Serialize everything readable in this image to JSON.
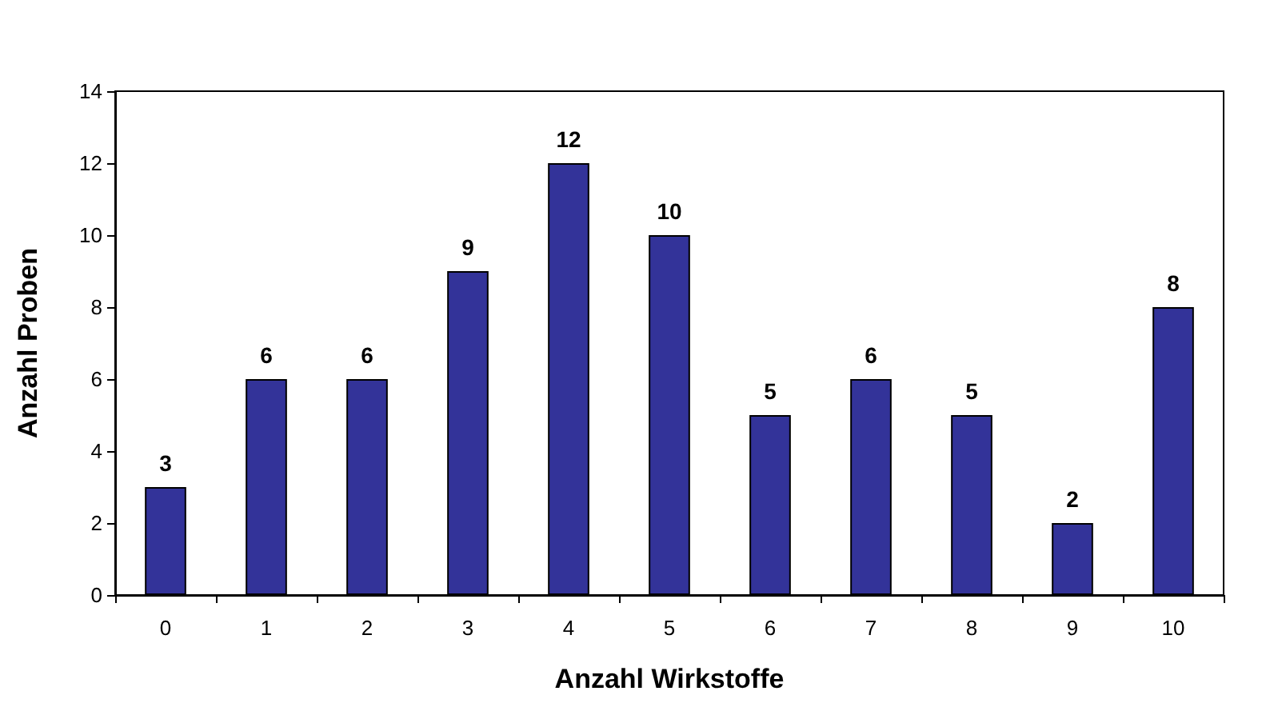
{
  "chart_data": {
    "type": "bar",
    "xlabel": "Anzahl Wirkstoffe",
    "ylabel": "Anzahl Proben",
    "categories": [
      "0",
      "1",
      "2",
      "3",
      "4",
      "5",
      "6",
      "7",
      "8",
      "9",
      "10"
    ],
    "values": [
      3,
      6,
      6,
      9,
      12,
      10,
      5,
      6,
      5,
      2,
      8
    ],
    "color": "#333399",
    "ylim": [
      0,
      14
    ],
    "yticks": [
      0,
      2,
      4,
      6,
      8,
      10,
      12,
      14
    ],
    "grid": false,
    "data_labels": true
  }
}
